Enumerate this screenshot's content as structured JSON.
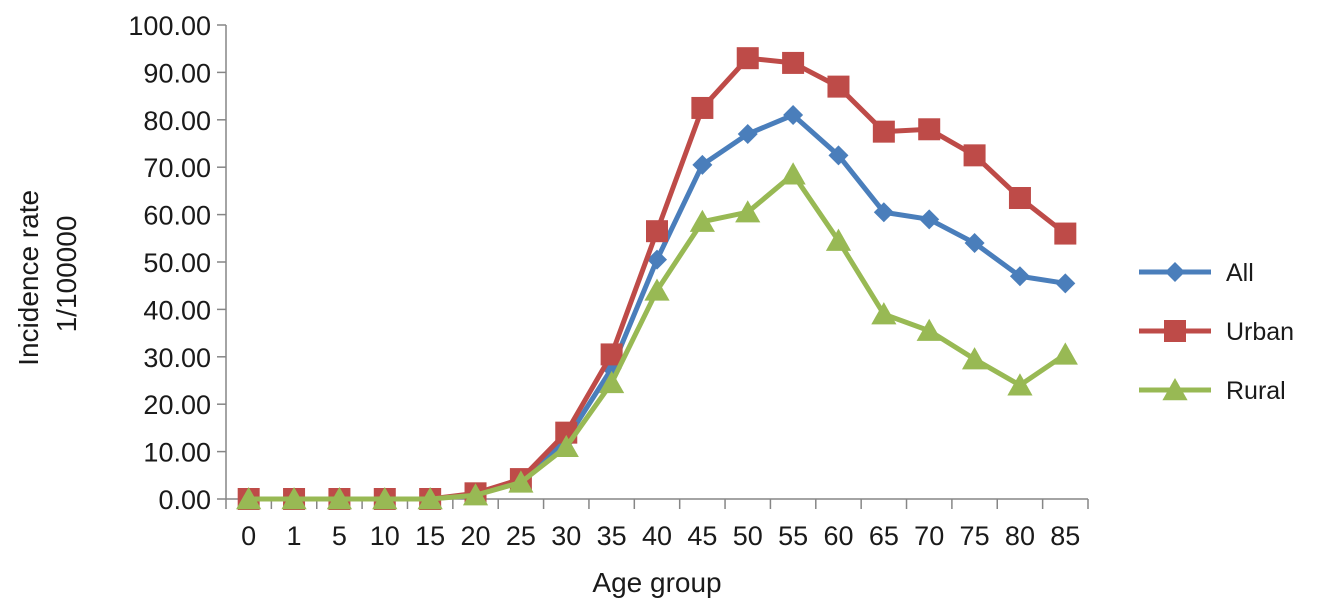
{
  "chart_data": {
    "type": "line",
    "title": "",
    "xlabel": "Age group",
    "ylabel_lines": [
      "Incidence rate",
      "1/100000"
    ],
    "categories": [
      "0",
      "1",
      "5",
      "10",
      "15",
      "20",
      "25",
      "30",
      "35",
      "40",
      "45",
      "50",
      "55",
      "60",
      "65",
      "70",
      "75",
      "80",
      "85"
    ],
    "ylim": [
      0,
      100
    ],
    "yticks": [
      "0.00",
      "10.00",
      "20.00",
      "30.00",
      "40.00",
      "50.00",
      "60.00",
      "70.00",
      "80.00",
      "90.00",
      "100.00"
    ],
    "grid": false,
    "legend_position": "right",
    "series": [
      {
        "name": "All",
        "color": "#4a7ebb",
        "marker": "diamond",
        "values": [
          0,
          0,
          0,
          0,
          0,
          1.0,
          3.8,
          12.5,
          27.5,
          50.5,
          70.5,
          77.0,
          81.0,
          72.5,
          60.5,
          59.0,
          54.0,
          47.0,
          45.5
        ]
      },
      {
        "name": "Urban",
        "color": "#be4b48",
        "marker": "square",
        "values": [
          0,
          0,
          0,
          0,
          0,
          1.2,
          4.2,
          14.0,
          30.5,
          56.5,
          82.5,
          93.0,
          92.0,
          87.0,
          77.5,
          78.0,
          72.5,
          63.5,
          56.0
        ]
      },
      {
        "name": "Rural",
        "color": "#98b954",
        "marker": "triangle",
        "values": [
          0,
          0,
          0,
          0,
          0,
          0.8,
          3.5,
          11.0,
          24.5,
          44.0,
          58.5,
          60.5,
          68.5,
          54.5,
          39.0,
          35.5,
          29.5,
          24.0,
          30.5
        ]
      }
    ]
  }
}
